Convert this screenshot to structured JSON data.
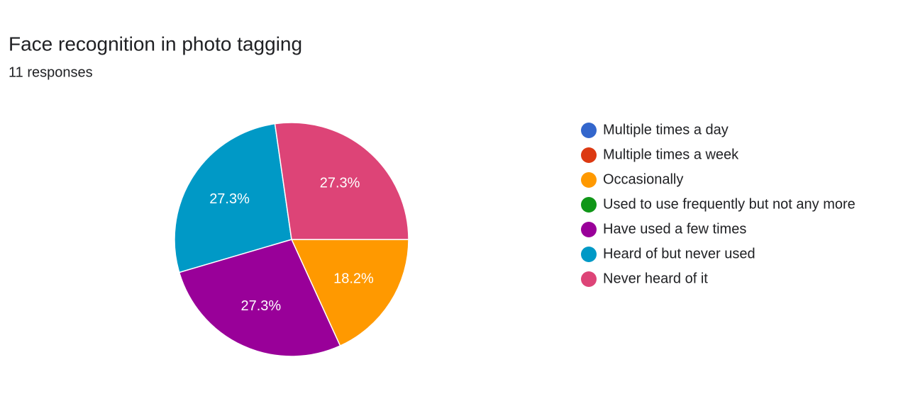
{
  "chart_data": {
    "type": "pie",
    "title": "Face recognition in photo tagging",
    "subtitle": "11 responses",
    "categories": [
      "Multiple times a day",
      "Multiple times a week",
      "Occasionally",
      "Used to use frequently but not any more",
      "Have used a few times",
      "Heard of but never used",
      "Never heard of it"
    ],
    "values": [
      0,
      0,
      18.2,
      0,
      27.3,
      27.3,
      27.3
    ],
    "value_labels": [
      null,
      null,
      "18.2%",
      null,
      "27.3%",
      "27.3%",
      "27.3%"
    ],
    "colors": [
      "#3366cc",
      "#dc3912",
      "#ff9900",
      "#109618",
      "#990099",
      "#0099c6",
      "#dd4477"
    ],
    "legend": "right"
  }
}
